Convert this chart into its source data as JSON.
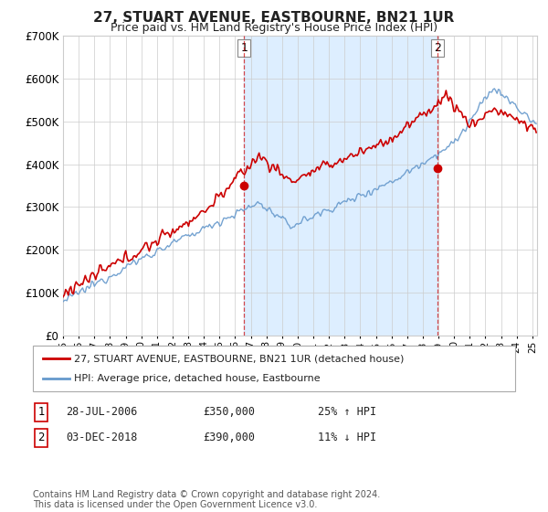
{
  "title": "27, STUART AVENUE, EASTBOURNE, BN21 1UR",
  "subtitle": "Price paid vs. HM Land Registry's House Price Index (HPI)",
  "red_label": "27, STUART AVENUE, EASTBOURNE, BN21 1UR (detached house)",
  "blue_label": "HPI: Average price, detached house, Eastbourne",
  "footnote": "Contains HM Land Registry data © Crown copyright and database right 2024.\nThis data is licensed under the Open Government Licence v3.0.",
  "annotation1_date": "28-JUL-2006",
  "annotation1_price": "£350,000",
  "annotation1_hpi": "25% ↑ HPI",
  "annotation2_date": "03-DEC-2018",
  "annotation2_price": "£390,000",
  "annotation2_hpi": "11% ↓ HPI",
  "ylim": [
    0,
    700000
  ],
  "yticks": [
    0,
    100000,
    200000,
    300000,
    400000,
    500000,
    600000,
    700000
  ],
  "red_color": "#cc0000",
  "blue_color": "#6699cc",
  "shade_color": "#ddeeff",
  "marker1_year": 2006.57,
  "marker1_value": 350000,
  "marker2_year": 2018.92,
  "marker2_value": 390000,
  "background_color": "#ffffff",
  "grid_color": "#cccccc",
  "xlim_start": 1995,
  "xlim_end": 2025.3
}
